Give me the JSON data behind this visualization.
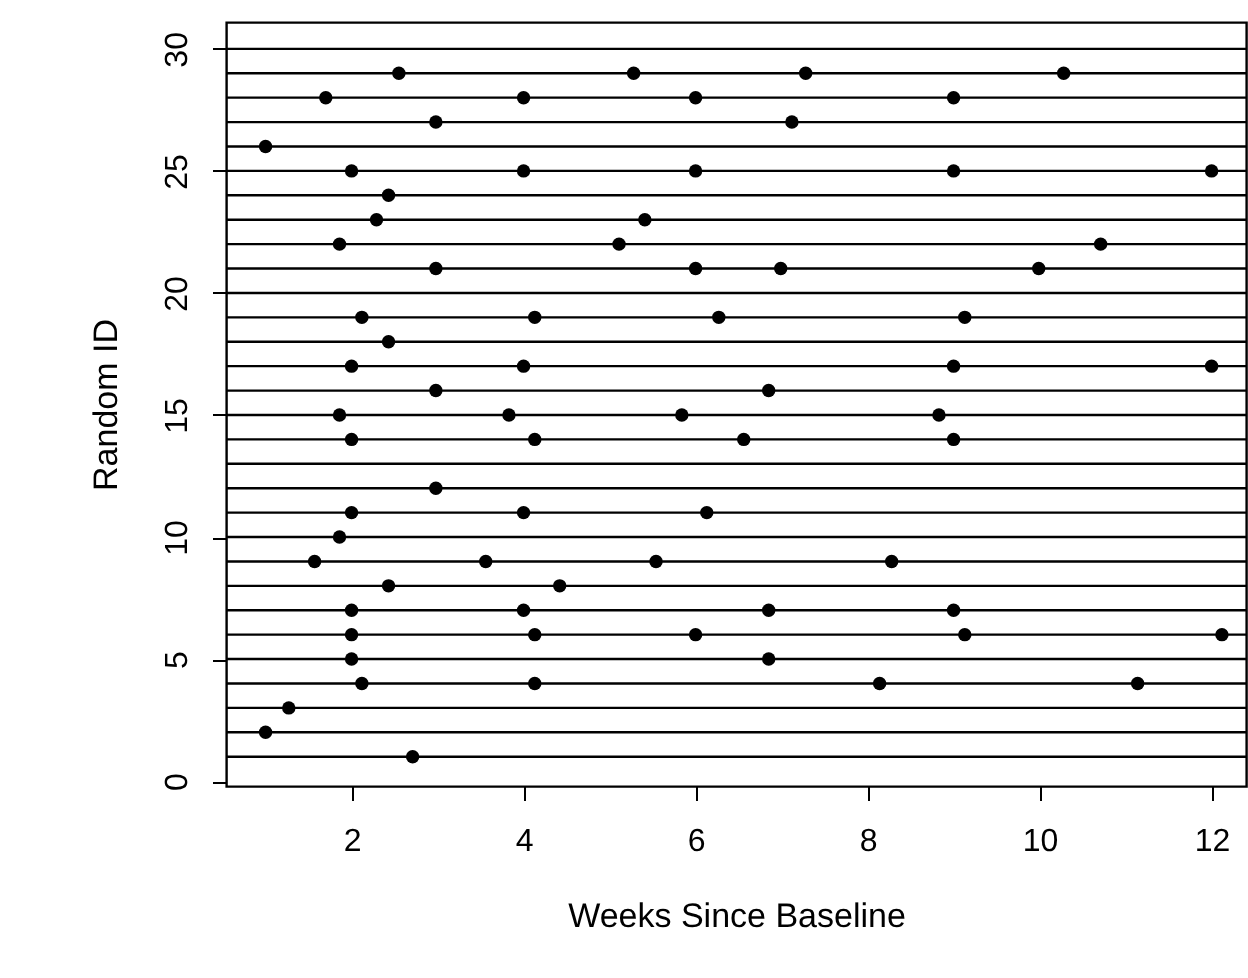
{
  "chart_data": {
    "type": "scatter",
    "xlabel": "Weeks Since Baseline",
    "ylabel": "Random ID",
    "xlim": [
      0.54,
      12.4
    ],
    "ylim": [
      -0.2,
      31.1
    ],
    "xticks": [
      2,
      4,
      6,
      8,
      10,
      12
    ],
    "yticks": [
      0,
      5,
      10,
      15,
      20,
      25,
      30
    ],
    "grid": false,
    "marker": "circle",
    "series": [
      {
        "color": "#000000",
        "x": [
          2.55,
          5.28,
          7.28,
          10.28,
          1.7,
          4.0,
          6.0,
          9.0,
          2.98,
          7.12,
          1.0,
          2.0,
          4.0,
          6.0,
          9.0,
          12.0,
          2.43,
          2.29,
          5.41,
          1.86,
          5.11,
          10.71,
          2.98,
          6.0,
          6.99,
          9.99,
          2.12,
          4.13,
          6.27,
          9.13,
          2.43,
          2.0,
          4.0,
          9.0,
          12.0,
          2.98,
          6.85,
          1.86,
          3.83,
          5.84,
          8.83,
          2.0,
          4.13,
          6.56,
          9.0,
          2.98,
          2.0,
          4.0,
          6.13,
          1.86,
          1.57,
          3.56,
          5.54,
          8.28,
          2.43,
          4.42,
          2.0,
          4.0,
          6.85,
          9.0,
          2.0,
          4.13,
          6.0,
          9.13,
          12.12,
          2.0,
          6.85,
          2.12,
          4.13,
          8.14,
          11.14,
          1.27,
          1.0,
          2.71
        ],
        "values": [
          29,
          29,
          29,
          29,
          28,
          28,
          28,
          28,
          27,
          27,
          26,
          25,
          25,
          25,
          25,
          25,
          24,
          23,
          23,
          22,
          22,
          22,
          21,
          21,
          21,
          21,
          19,
          19,
          19,
          19,
          18,
          17,
          17,
          17,
          17,
          16,
          16,
          15,
          15,
          15,
          15,
          14,
          14,
          14,
          14,
          12,
          11,
          11,
          11,
          10,
          9,
          9,
          9,
          9,
          8,
          8,
          7,
          7,
          7,
          7,
          6,
          6,
          6,
          6,
          6,
          5,
          5,
          4,
          4,
          4,
          4,
          3,
          2,
          1
        ]
      }
    ],
    "ref_lines": [
      {
        "axis": "y",
        "value": 1,
        "color": "#000000"
      },
      {
        "axis": "y",
        "value": 2,
        "color": "#000000"
      },
      {
        "axis": "y",
        "value": 3,
        "color": "#000000"
      },
      {
        "axis": "y",
        "value": 4,
        "color": "#000000"
      },
      {
        "axis": "y",
        "value": 5,
        "color": "#000000"
      },
      {
        "axis": "y",
        "value": 6,
        "color": "#000000"
      },
      {
        "axis": "y",
        "value": 7,
        "color": "#000000"
      },
      {
        "axis": "y",
        "value": 8,
        "color": "#000000"
      },
      {
        "axis": "y",
        "value": 9,
        "color": "#000000"
      },
      {
        "axis": "y",
        "value": 10,
        "color": "#000000"
      },
      {
        "axis": "y",
        "value": 11,
        "color": "#000000"
      },
      {
        "axis": "y",
        "value": 12,
        "color": "#000000"
      },
      {
        "axis": "y",
        "value": 13,
        "color": "#000000"
      },
      {
        "axis": "y",
        "value": 14,
        "color": "#000000"
      },
      {
        "axis": "y",
        "value": 15,
        "color": "#000000"
      },
      {
        "axis": "y",
        "value": 16,
        "color": "#000000"
      },
      {
        "axis": "y",
        "value": 17,
        "color": "#000000"
      },
      {
        "axis": "y",
        "value": 18,
        "color": "#000000"
      },
      {
        "axis": "y",
        "value": 19,
        "color": "#000000"
      },
      {
        "axis": "y",
        "value": 20,
        "color": "#000000"
      },
      {
        "axis": "y",
        "value": 21,
        "color": "#000000"
      },
      {
        "axis": "y",
        "value": 22,
        "color": "#000000"
      },
      {
        "axis": "y",
        "value": 23,
        "color": "#000000"
      },
      {
        "axis": "y",
        "value": 24,
        "color": "#000000"
      },
      {
        "axis": "y",
        "value": 25,
        "color": "#000000"
      },
      {
        "axis": "y",
        "value": 26,
        "color": "#000000"
      },
      {
        "axis": "y",
        "value": 27,
        "color": "#000000"
      },
      {
        "axis": "y",
        "value": 28,
        "color": "#000000"
      },
      {
        "axis": "y",
        "value": 29,
        "color": "#000000"
      },
      {
        "axis": "y",
        "value": 30,
        "color": "#000000"
      }
    ]
  }
}
